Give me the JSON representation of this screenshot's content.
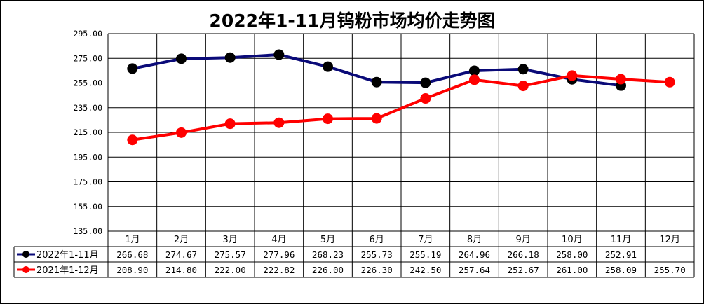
{
  "colors": {
    "series1": "#0a0a78",
    "series2": "#ff0000",
    "marker1": "#000000",
    "grid": "#000000"
  },
  "chart_data": {
    "type": "line",
    "title": "2022年1-11月钨粉市场均价走势图",
    "categories": [
      "1月",
      "2月",
      "3月",
      "4月",
      "5月",
      "6月",
      "7月",
      "8月",
      "9月",
      "10月",
      "11月",
      "12月"
    ],
    "ylim": [
      135,
      295
    ],
    "yticks": [
      "295.00",
      "275.00",
      "255.00",
      "235.00",
      "215.00",
      "195.00",
      "175.00",
      "155.00",
      "135.00"
    ],
    "grid": true,
    "legend": "data-table",
    "series": [
      {
        "name": "2022年1-11月",
        "values": [
          266.68,
          274.67,
          275.57,
          277.96,
          268.23,
          255.73,
          255.19,
          264.96,
          266.18,
          258.0,
          252.91,
          null
        ],
        "labels": [
          "266.68",
          "274.67",
          "275.57",
          "277.96",
          "268.23",
          "255.73",
          "255.19",
          "264.96",
          "266.18",
          "258.00",
          "252.91",
          ""
        ]
      },
      {
        "name": "2021年1-12月",
        "values": [
          208.9,
          214.8,
          222.0,
          222.82,
          226.0,
          226.3,
          242.5,
          257.64,
          252.67,
          261.0,
          258.09,
          255.7
        ],
        "labels": [
          "208.90",
          "214.80",
          "222.00",
          "222.82",
          "226.00",
          "226.30",
          "242.50",
          "257.64",
          "252.67",
          "261.00",
          "258.09",
          "255.70"
        ]
      }
    ]
  }
}
